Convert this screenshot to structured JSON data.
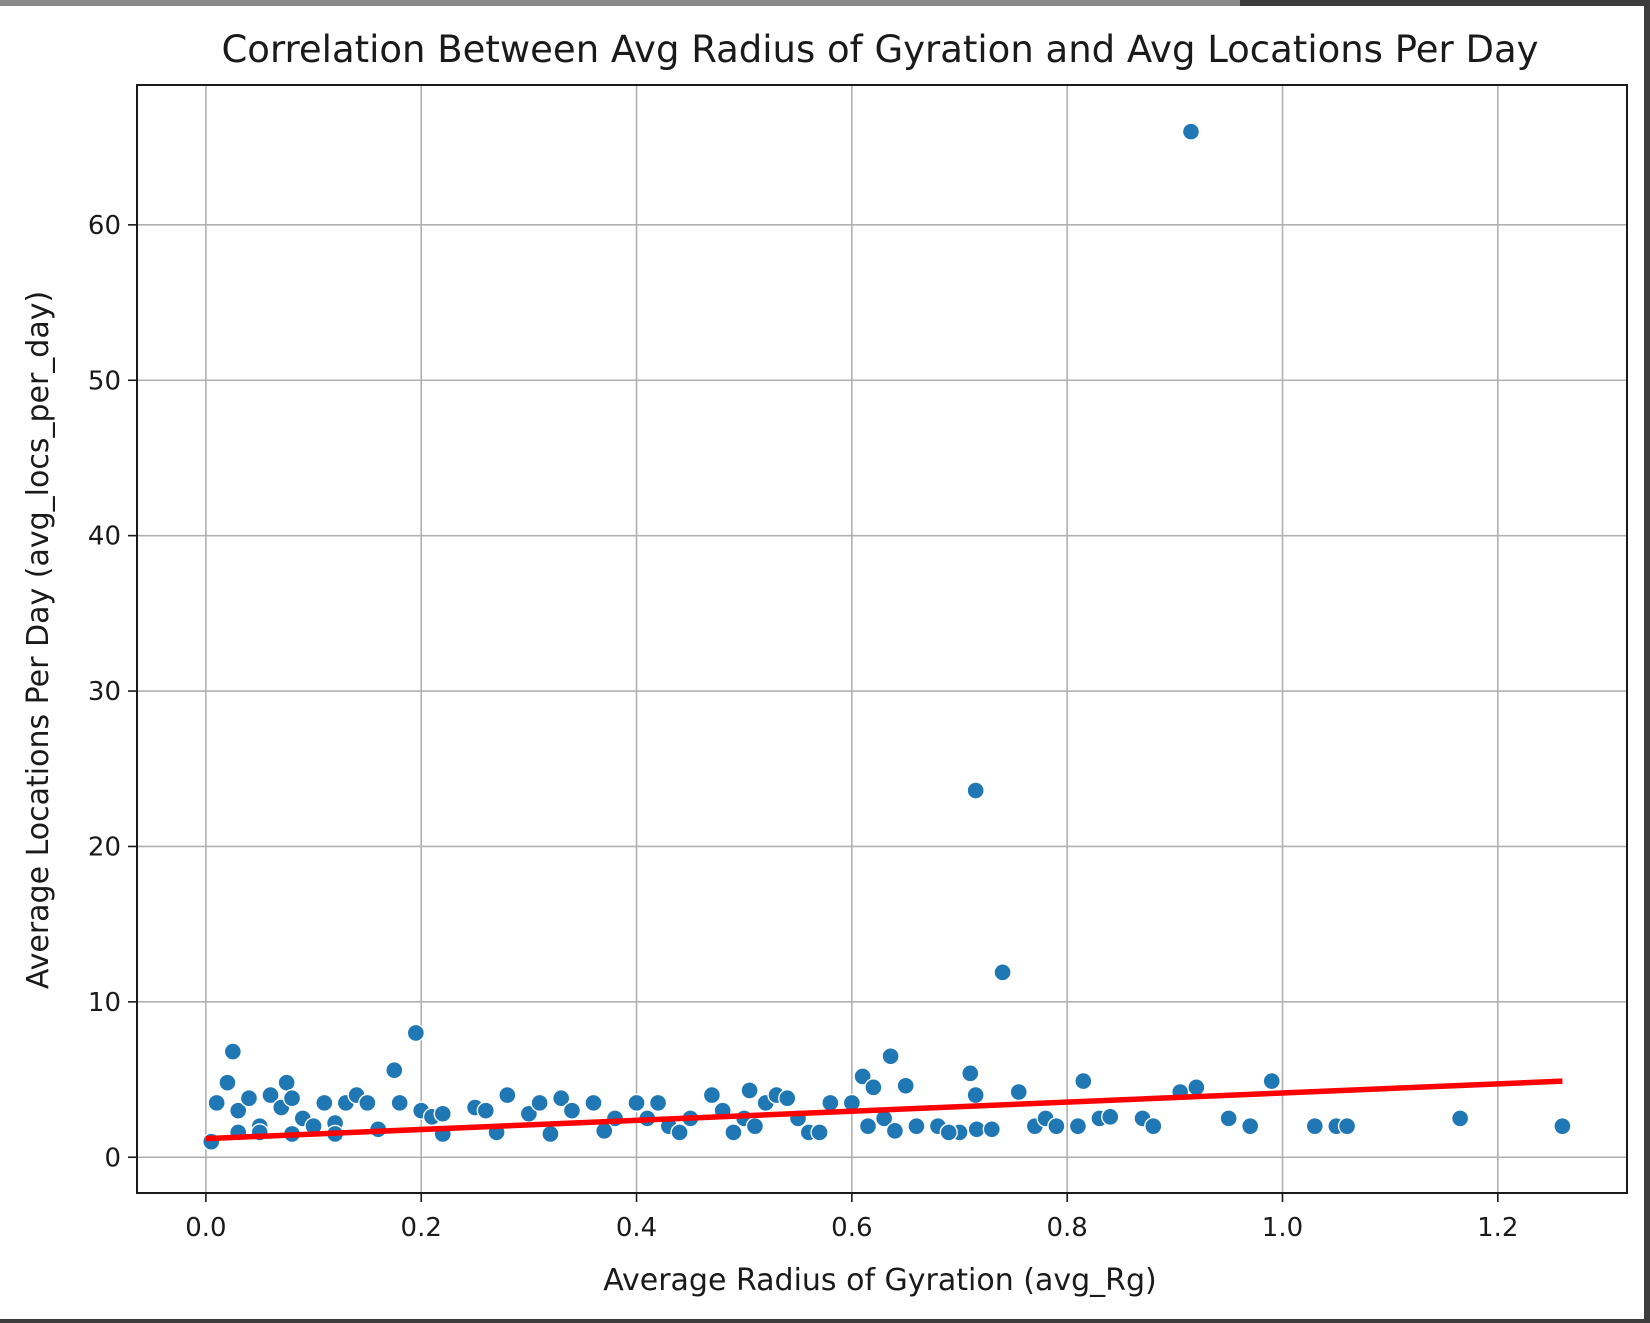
{
  "chart_data": {
    "type": "scatter",
    "title": "Correlation Between Avg Radius of Gyration and Avg Locations Per Day",
    "xlabel": "Average Radius of Gyration (avg_Rg)",
    "ylabel": "Average Locations Per Day (avg_locs_per_day)",
    "xlim": [
      -0.064,
      1.32
    ],
    "ylim": [
      -2.3,
      69
    ],
    "xticks": [
      0.0,
      0.2,
      0.4,
      0.6,
      0.8,
      1.0,
      1.2
    ],
    "yticks": [
      0,
      10,
      20,
      30,
      40,
      50,
      60
    ],
    "xtick_labels": [
      "0.0",
      "0.2",
      "0.4",
      "0.6",
      "0.8",
      "1.0",
      "1.2"
    ],
    "ytick_labels": [
      "0",
      "10",
      "20",
      "30",
      "40",
      "50",
      "60"
    ],
    "grid": true,
    "point_color": "#1f77b4",
    "trend_color": "#ff0000",
    "series": [
      {
        "kind": "points",
        "x": [
          0.005,
          0.01,
          0.02,
          0.025,
          0.03,
          0.04,
          0.05,
          0.06,
          0.07,
          0.075,
          0.08,
          0.09,
          0.1,
          0.11,
          0.12,
          0.13,
          0.14,
          0.15,
          0.175,
          0.18,
          0.195,
          0.2,
          0.21,
          0.22,
          0.25,
          0.26,
          0.28,
          0.3,
          0.31,
          0.33,
          0.34,
          0.36,
          0.38,
          0.4,
          0.41,
          0.42,
          0.43,
          0.45,
          0.47,
          0.48,
          0.5,
          0.505,
          0.51,
          0.52,
          0.53,
          0.54,
          0.55,
          0.58,
          0.6,
          0.61,
          0.615,
          0.62,
          0.63,
          0.636,
          0.65,
          0.66,
          0.68,
          0.7,
          0.71,
          0.715,
          0.715,
          0.716,
          0.73,
          0.74,
          0.755,
          0.77,
          0.78,
          0.79,
          0.81,
          0.815,
          0.83,
          0.84,
          0.87,
          0.88,
          0.905,
          0.915,
          0.92,
          0.95,
          0.97,
          0.99,
          1.03,
          1.05,
          1.06,
          1.165,
          1.26,
          0.03,
          0.05,
          0.08,
          0.12,
          0.16,
          0.22,
          0.27,
          0.32,
          0.37,
          0.44,
          0.49,
          0.56,
          0.57,
          0.64,
          0.69
        ],
        "y": [
          1.0,
          3.5,
          4.8,
          6.8,
          3.0,
          3.8,
          2.0,
          4.0,
          3.2,
          4.8,
          3.8,
          2.5,
          2.0,
          3.5,
          2.2,
          3.5,
          4.0,
          3.5,
          5.6,
          3.5,
          8.0,
          3.0,
          2.6,
          2.8,
          3.2,
          3.0,
          4.0,
          2.8,
          3.5,
          3.8,
          3.0,
          3.5,
          2.5,
          3.5,
          2.5,
          3.5,
          2.0,
          2.5,
          4.0,
          3.0,
          2.5,
          4.3,
          2.0,
          3.5,
          4.0,
          3.8,
          2.5,
          3.5,
          3.5,
          5.2,
          2.0,
          4.5,
          2.5,
          6.5,
          4.6,
          2.0,
          2.0,
          1.6,
          5.4,
          23.6,
          4.0,
          1.8,
          1.8,
          11.9,
          4.2,
          2.0,
          2.5,
          2.0,
          2.0,
          4.9,
          2.5,
          2.6,
          2.5,
          2.0,
          4.2,
          66.0,
          4.5,
          2.5,
          2.0,
          4.9,
          2.0,
          2.0,
          2.0,
          2.5,
          2.0,
          1.6,
          1.6,
          1.5,
          1.5,
          1.8,
          1.5,
          1.6,
          1.5,
          1.7,
          1.6,
          1.6,
          1.6,
          1.6,
          1.7,
          1.6
        ]
      },
      {
        "kind": "trend",
        "x": [
          0.0,
          1.26
        ],
        "y": [
          1.2,
          4.9
        ]
      }
    ]
  }
}
